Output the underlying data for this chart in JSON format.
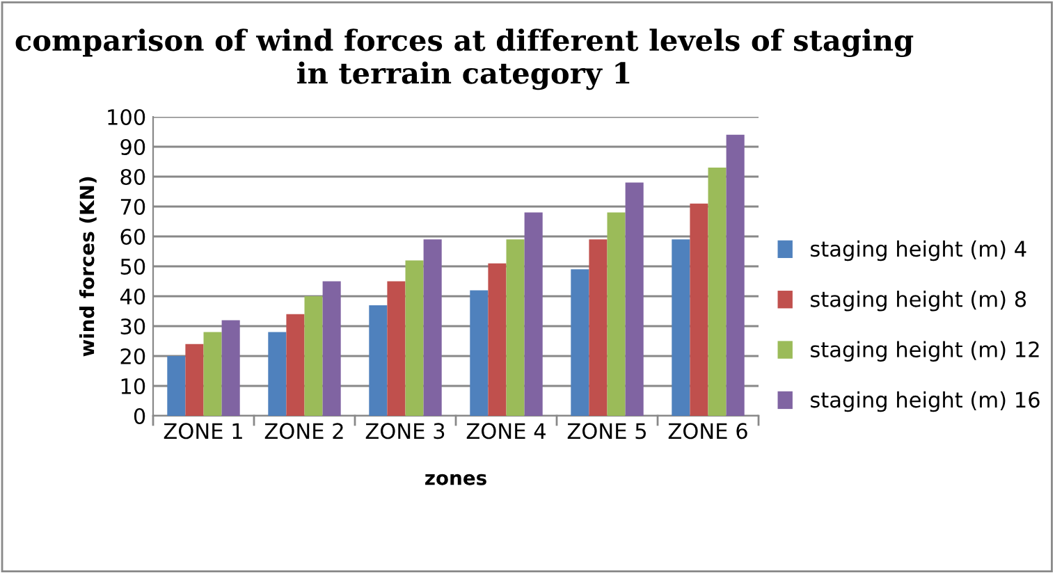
{
  "chart_data": {
    "type": "bar",
    "title": "comparison of wind forces at different levels of staging in terrain category 1",
    "xlabel": "zones",
    "ylabel": "wind forces (KN)",
    "categories": [
      "ZONE 1",
      "ZONE 2",
      "ZONE 3",
      "ZONE 4",
      "ZONE 5",
      "ZONE 6"
    ],
    "series": [
      {
        "name": "staging height (m) 4",
        "color": "#4f81bd",
        "values": [
          20,
          28,
          37,
          42,
          49,
          59
        ]
      },
      {
        "name": "staging height (m) 8",
        "color": "#c0504d",
        "values": [
          24,
          34,
          45,
          51,
          59,
          71
        ]
      },
      {
        "name": "staging height (m) 12",
        "color": "#9bbb59",
        "values": [
          28,
          40,
          52,
          59,
          68,
          83
        ]
      },
      {
        "name": "staging height (m) 16",
        "color": "#8064a2",
        "values": [
          32,
          45,
          59,
          68,
          78,
          94
        ]
      }
    ],
    "ylim": [
      0,
      100
    ],
    "yticks": [
      0,
      10,
      20,
      30,
      40,
      50,
      60,
      70,
      80,
      90,
      100
    ],
    "grid": "y",
    "legend": "right"
  }
}
